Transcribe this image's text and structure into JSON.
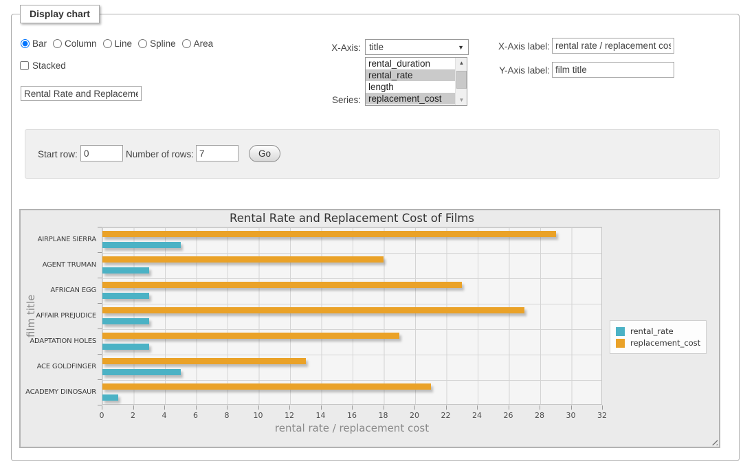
{
  "panel": {
    "title": "Display chart"
  },
  "chart_type": {
    "options": [
      "Bar",
      "Column",
      "Line",
      "Spline",
      "Area"
    ],
    "selected": "Bar"
  },
  "stacked": {
    "label": "Stacked",
    "checked": false
  },
  "chart_title_input": {
    "value": "Rental Rate and Replacement Cost of Films"
  },
  "x_axis": {
    "caption": "X-Axis:",
    "selected": "title"
  },
  "series_select": {
    "caption": "Series:",
    "options": [
      {
        "name": "rental_duration",
        "selected": false
      },
      {
        "name": "rental_rate",
        "selected": true
      },
      {
        "name": "length",
        "selected": false
      },
      {
        "name": "replacement_cost",
        "selected": true
      }
    ]
  },
  "axis_labels": {
    "x_caption": "X-Axis label:",
    "x_value": "rental rate / replacement cost",
    "y_caption": "Y-Axis label:",
    "y_value": "film title"
  },
  "row_controls": {
    "start_row_caption": "Start row:",
    "start_row_value": "0",
    "num_rows_caption": "Number of rows:",
    "num_rows_value": "7",
    "go_label": "Go"
  },
  "chart_data": {
    "type": "bar",
    "orientation": "horizontal",
    "title": "Rental Rate and Replacement Cost of Films",
    "categories": [
      "AIRPLANE SIERRA",
      "AGENT TRUMAN",
      "AFRICAN EGG",
      "AFFAIR PREJUDICE",
      "ADAPTATION HOLES",
      "ACE GOLDFINGER",
      "ACADEMY DINOSAUR"
    ],
    "series": [
      {
        "name": "rental_rate",
        "color": "#4bb2c5",
        "values": [
          4.99,
          2.99,
          2.99,
          2.99,
          2.99,
          4.99,
          0.99
        ]
      },
      {
        "name": "replacement_cost",
        "color": "#eaa228",
        "values": [
          28.99,
          17.99,
          22.99,
          26.99,
          18.99,
          12.99,
          20.99
        ]
      }
    ],
    "xlabel": "rental rate / replacement cost",
    "ylabel": "film title",
    "xlim": [
      0,
      32
    ],
    "xtick_step": 2,
    "grid": true,
    "legend_position": "right",
    "bar_draw_order": [
      "replacement_cost",
      "rental_rate"
    ]
  }
}
